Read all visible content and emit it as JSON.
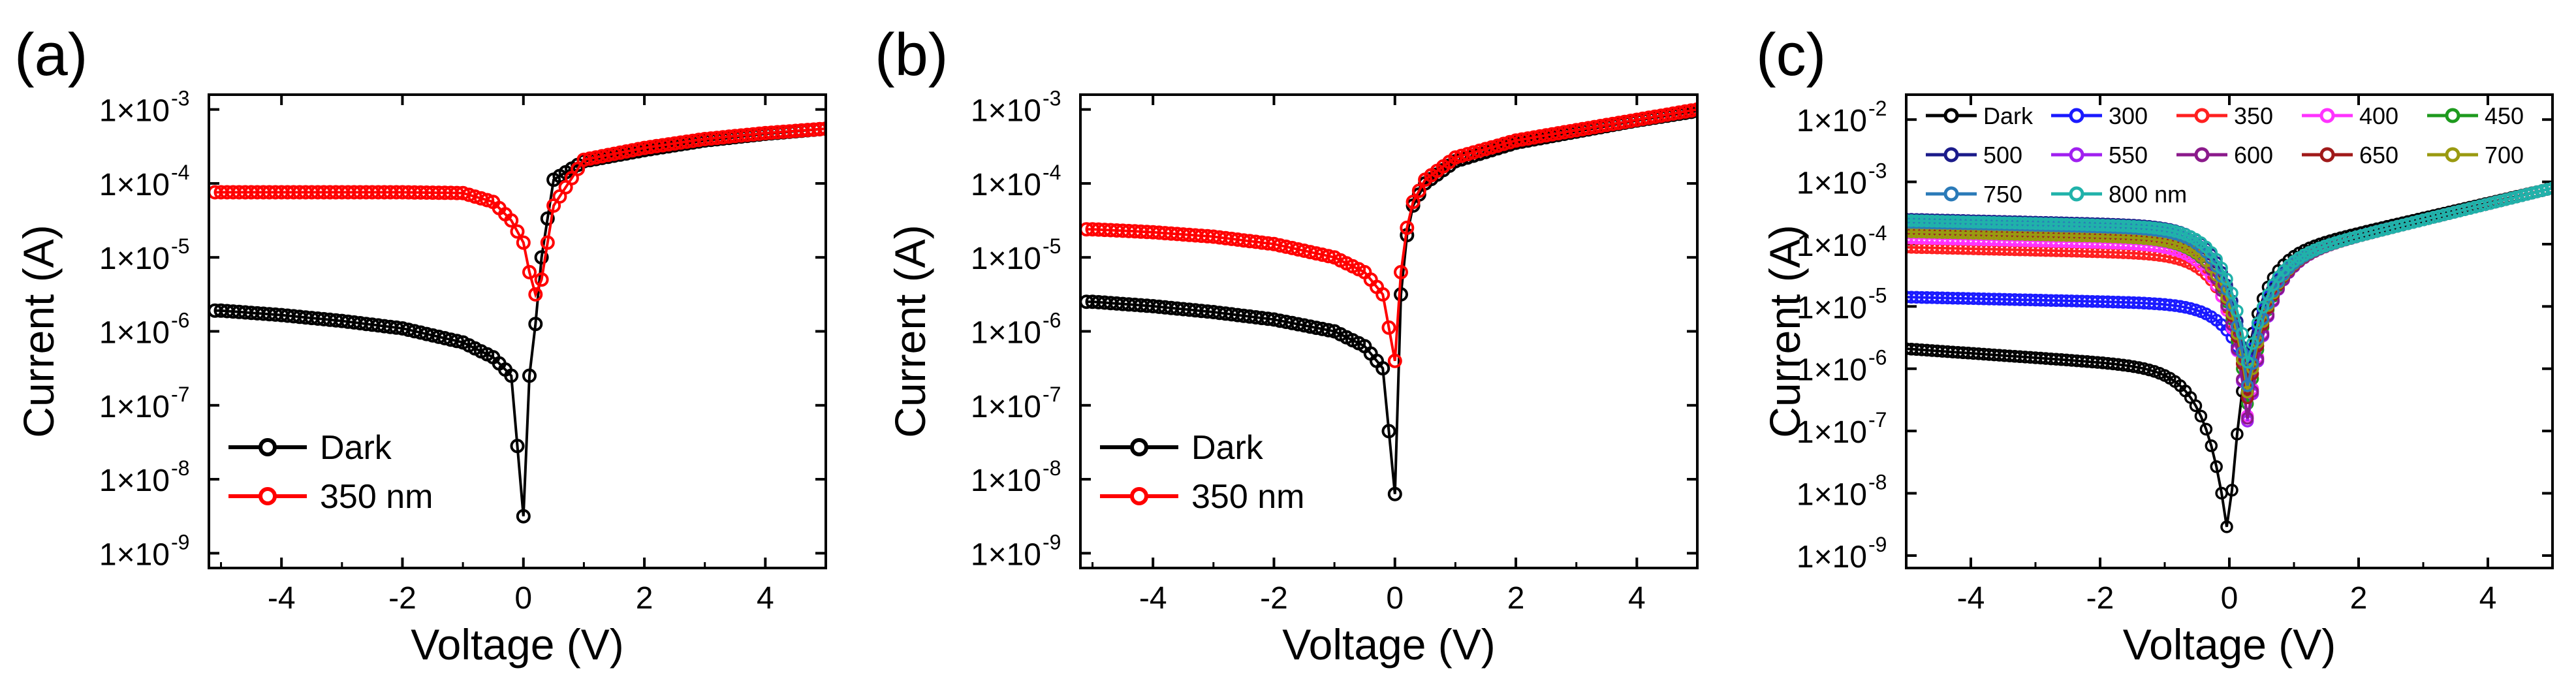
{
  "chart_data": [
    {
      "type": "scatter",
      "panel": "(a)",
      "title": "",
      "xlabel": "Voltage (V)",
      "ylabel": "Current (A)",
      "xlim": [
        -5.2,
        5.0
      ],
      "ylim_log10": [
        -9.2,
        -2.8
      ],
      "yscale": "log",
      "x_ticks": [
        -4,
        -2,
        0,
        2,
        4
      ],
      "x_tick_labels": [
        "-4",
        "-2",
        "0",
        "2",
        "4"
      ],
      "y_ticks_exp": [
        -9,
        -8,
        -7,
        -6,
        -5,
        -4,
        -3
      ],
      "y_tick_labels": [
        "1×10",
        "1×10",
        "1×10",
        "1×10",
        "1×10",
        "1×10",
        "1×10"
      ],
      "y_tick_exponents": [
        "-9",
        "-8",
        "-7",
        "-6",
        "-5",
        "-4",
        "-3"
      ],
      "legend_position": "bottom-left",
      "series": [
        {
          "name": "Dark",
          "color": "#000000",
          "x": [
            -5,
            -4,
            -3,
            -2,
            -1,
            -0.5,
            -0.2,
            0,
            0.05,
            0.1,
            0.2,
            0.3,
            0.5,
            1,
            2,
            3,
            4,
            5
          ],
          "y_log10": [
            -5.72,
            -5.78,
            -5.86,
            -5.96,
            -6.15,
            -6.35,
            -6.6,
            -8.5,
            -7.0,
            -6.6,
            -5.9,
            -5.0,
            -3.95,
            -3.7,
            -3.55,
            -3.42,
            -3.33,
            -3.26
          ]
        },
        {
          "name": "350 nm",
          "color": "#ff0000",
          "x": [
            -5,
            -4,
            -3,
            -2,
            -1,
            -0.5,
            -0.2,
            0,
            0.1,
            0.2,
            0.25,
            0.3,
            0.5,
            1,
            2,
            3,
            4,
            5
          ],
          "y_log10": [
            -4.12,
            -4.12,
            -4.12,
            -4.12,
            -4.13,
            -4.25,
            -4.5,
            -4.8,
            -5.2,
            -5.5,
            -5.85,
            -5.3,
            -4.3,
            -3.68,
            -3.52,
            -3.4,
            -3.32,
            -3.26
          ]
        }
      ]
    },
    {
      "type": "scatter",
      "panel": "(b)",
      "title": "",
      "xlabel": "Voltage (V)",
      "ylabel": "Current (A)",
      "xlim": [
        -5.2,
        5.0
      ],
      "ylim_log10": [
        -9.2,
        -2.8
      ],
      "yscale": "log",
      "x_ticks": [
        -4,
        -2,
        0,
        2,
        4
      ],
      "x_tick_labels": [
        "-4",
        "-2",
        "0",
        "2",
        "4"
      ],
      "y_ticks_exp": [
        -9,
        -8,
        -7,
        -6,
        -5,
        -4,
        -3
      ],
      "y_tick_labels": [
        "1×10",
        "1×10",
        "1×10",
        "1×10",
        "1×10",
        "1×10",
        "1×10"
      ],
      "y_tick_exponents": [
        "-9",
        "-8",
        "-7",
        "-6",
        "-5",
        "-4",
        "-3"
      ],
      "legend_position": "bottom-left",
      "series": [
        {
          "name": "Dark",
          "color": "#000000",
          "x": [
            -5,
            -4,
            -3,
            -2,
            -1,
            -0.5,
            -0.2,
            0,
            0.05,
            0.1,
            0.2,
            0.3,
            0.5,
            1,
            2,
            3,
            4,
            5
          ],
          "y_log10": [
            -5.6,
            -5.66,
            -5.74,
            -5.84,
            -6.0,
            -6.2,
            -6.5,
            -8.2,
            -6.6,
            -5.5,
            -4.7,
            -4.3,
            -4.0,
            -3.7,
            -3.45,
            -3.3,
            -3.15,
            -3.02
          ]
        },
        {
          "name": "350 nm",
          "color": "#ff0000",
          "x": [
            -5,
            -4,
            -3,
            -2,
            -1,
            -0.5,
            -0.2,
            0,
            0.05,
            0.1,
            0.2,
            0.3,
            0.5,
            1,
            2,
            3,
            4,
            5
          ],
          "y_log10": [
            -4.62,
            -4.66,
            -4.72,
            -4.82,
            -5.0,
            -5.2,
            -5.5,
            -6.4,
            -5.8,
            -5.2,
            -4.6,
            -4.25,
            -3.95,
            -3.65,
            -3.42,
            -3.28,
            -3.14,
            -3.0
          ]
        }
      ]
    },
    {
      "type": "scatter",
      "panel": "(c)",
      "title": "",
      "xlabel": "Voltage (V)",
      "ylabel": "Current (A)",
      "xlim": [
        -5.0,
        5.0
      ],
      "ylim_log10": [
        -9.2,
        -1.6
      ],
      "yscale": "log",
      "x_ticks": [
        -4,
        -2,
        0,
        2,
        4
      ],
      "x_tick_labels": [
        "-4",
        "-2",
        "0",
        "2",
        "4"
      ],
      "y_ticks_exp": [
        -9,
        -8,
        -7,
        -6,
        -5,
        -4,
        -3,
        -2
      ],
      "y_tick_labels": [
        "1×10",
        "1×10",
        "1×10",
        "1×10",
        "1×10",
        "1×10",
        "1×10",
        "1×10"
      ],
      "y_tick_exponents": [
        "-9",
        "-8",
        "-7",
        "-6",
        "-5",
        "-4",
        "-3",
        "-2"
      ],
      "legend_position": "top",
      "series": [
        {
          "name": "Dark",
          "color": "#000000",
          "y_rev": -5.68,
          "y_min": -8.5,
          "x_min": 0.0
        },
        {
          "name": "300",
          "color": "#1a1aff",
          "y_rev": -4.85,
          "y_min": -6.0,
          "x_min": 0.3
        },
        {
          "name": "350",
          "color": "#ff2020",
          "y_rev": -4.05,
          "y_min": -6.4,
          "x_min": 0.3
        },
        {
          "name": "400",
          "color": "#ff33ff",
          "y_rev": -3.9,
          "y_min": -6.8,
          "x_min": 0.3
        },
        {
          "name": "450",
          "color": "#1e9a1e",
          "y_rev": -3.8,
          "y_min": -6.6,
          "x_min": 0.3
        },
        {
          "name": "500",
          "color": "#1b1b8a",
          "y_rev": -3.6,
          "y_min": -6.2,
          "x_min": 0.3
        },
        {
          "name": "550",
          "color": "#a020f0",
          "y_rev": -3.72,
          "y_min": -6.9,
          "x_min": 0.3
        },
        {
          "name": "600",
          "color": "#8b1a8b",
          "y_rev": -3.75,
          "y_min": -6.85,
          "x_min": 0.3
        },
        {
          "name": "650",
          "color": "#a01a1a",
          "y_rev": -3.78,
          "y_min": -6.5,
          "x_min": 0.3
        },
        {
          "name": "700",
          "color": "#9a9a10",
          "y_rev": -3.8,
          "y_min": -6.4,
          "x_min": 0.3
        },
        {
          "name": "750",
          "color": "#2a7ab8",
          "y_rev": -3.65,
          "y_min": -6.3,
          "x_min": 0.3
        },
        {
          "name": "800 nm",
          "color": "#20b2aa",
          "y_rev": -3.62,
          "y_min": -5.9,
          "x_min": 0.3
        }
      ],
      "forward_y_log10_at_5V": -3.1
    }
  ]
}
